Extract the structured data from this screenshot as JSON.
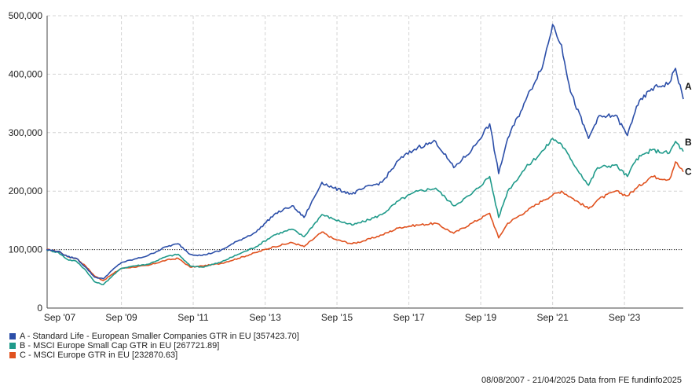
{
  "chart_data": {
    "type": "line",
    "y_ticks": [
      "0",
      "100,000",
      "200,000",
      "300,000",
      "400,000",
      "500,000"
    ],
    "ylim": [
      0,
      500000
    ],
    "x_ticks": [
      "Sep '07",
      "Sep '09",
      "Sep '11",
      "Sep '13",
      "Sep '15",
      "Sep '17",
      "Sep '19",
      "Sep '21",
      "Sep '23"
    ],
    "xlim": [
      "2007-08-08",
      "2025-04-21"
    ],
    "baseline": 100000,
    "grid": true,
    "series": [
      {
        "key": "A",
        "name": "A - Standard Life - European Smaller Companies GTR in EU [357423.70]",
        "color": "#2b4ea8",
        "points": [
          [
            "2007-08",
            100000
          ],
          [
            "2007-12",
            97000
          ],
          [
            "2008-03",
            88000
          ],
          [
            "2008-06",
            85000
          ],
          [
            "2008-09",
            70000
          ],
          [
            "2008-12",
            53000
          ],
          [
            "2009-03",
            50000
          ],
          [
            "2009-06",
            65000
          ],
          [
            "2009-09",
            78000
          ],
          [
            "2010-01",
            83000
          ],
          [
            "2010-06",
            90000
          ],
          [
            "2010-12",
            105000
          ],
          [
            "2011-04",
            110000
          ],
          [
            "2011-08",
            92000
          ],
          [
            "2011-12",
            90000
          ],
          [
            "2012-06",
            98000
          ],
          [
            "2012-12",
            115000
          ],
          [
            "2013-06",
            130000
          ],
          [
            "2013-12",
            160000
          ],
          [
            "2014-06",
            175000
          ],
          [
            "2014-10",
            155000
          ],
          [
            "2015-04",
            215000
          ],
          [
            "2015-08",
            205000
          ],
          [
            "2016-02",
            195000
          ],
          [
            "2016-06",
            205000
          ],
          [
            "2016-12",
            215000
          ],
          [
            "2017-06",
            255000
          ],
          [
            "2017-12",
            275000
          ],
          [
            "2018-06",
            285000
          ],
          [
            "2018-12",
            240000
          ],
          [
            "2019-06",
            270000
          ],
          [
            "2019-12",
            315000
          ],
          [
            "2020-03",
            230000
          ],
          [
            "2020-06",
            290000
          ],
          [
            "2020-12",
            355000
          ],
          [
            "2021-06",
            420000
          ],
          [
            "2021-09",
            485000
          ],
          [
            "2021-12",
            450000
          ],
          [
            "2022-03",
            370000
          ],
          [
            "2022-09",
            290000
          ],
          [
            "2022-12",
            325000
          ],
          [
            "2023-06",
            330000
          ],
          [
            "2023-10",
            295000
          ],
          [
            "2024-01",
            345000
          ],
          [
            "2024-06",
            375000
          ],
          [
            "2024-12",
            385000
          ],
          [
            "2025-02",
            410000
          ],
          [
            "2025-04-21",
            357424
          ]
        ]
      },
      {
        "key": "B",
        "name": "B - MSCI Europe Small Cap GTR in EU [267721.89]",
        "color": "#1f9a8a",
        "points": [
          [
            "2007-08",
            100000
          ],
          [
            "2007-12",
            95000
          ],
          [
            "2008-03",
            83000
          ],
          [
            "2008-06",
            80000
          ],
          [
            "2008-09",
            65000
          ],
          [
            "2008-12",
            45000
          ],
          [
            "2009-03",
            40000
          ],
          [
            "2009-06",
            55000
          ],
          [
            "2009-09",
            68000
          ],
          [
            "2010-01",
            72000
          ],
          [
            "2010-06",
            75000
          ],
          [
            "2010-12",
            88000
          ],
          [
            "2011-04",
            92000
          ],
          [
            "2011-08",
            72000
          ],
          [
            "2011-12",
            70000
          ],
          [
            "2012-06",
            78000
          ],
          [
            "2012-12",
            92000
          ],
          [
            "2013-06",
            105000
          ],
          [
            "2013-12",
            125000
          ],
          [
            "2014-06",
            135000
          ],
          [
            "2014-10",
            122000
          ],
          [
            "2015-04",
            160000
          ],
          [
            "2015-08",
            152000
          ],
          [
            "2016-02",
            142000
          ],
          [
            "2016-06",
            148000
          ],
          [
            "2016-12",
            160000
          ],
          [
            "2017-06",
            185000
          ],
          [
            "2017-12",
            200000
          ],
          [
            "2018-06",
            205000
          ],
          [
            "2018-12",
            175000
          ],
          [
            "2019-06",
            195000
          ],
          [
            "2019-12",
            225000
          ],
          [
            "2020-03",
            155000
          ],
          [
            "2020-06",
            200000
          ],
          [
            "2020-12",
            240000
          ],
          [
            "2021-06",
            270000
          ],
          [
            "2021-09",
            290000
          ],
          [
            "2021-12",
            280000
          ],
          [
            "2022-03",
            255000
          ],
          [
            "2022-09",
            210000
          ],
          [
            "2022-12",
            240000
          ],
          [
            "2023-06",
            245000
          ],
          [
            "2023-10",
            225000
          ],
          [
            "2024-01",
            255000
          ],
          [
            "2024-06",
            270000
          ],
          [
            "2024-12",
            265000
          ],
          [
            "2025-02",
            285000
          ],
          [
            "2025-04-21",
            267722
          ]
        ]
      },
      {
        "key": "C",
        "name": "C - MSCI Europe GTR in EU [232870.63]",
        "color": "#e0521f",
        "points": [
          [
            "2007-08",
            100000
          ],
          [
            "2007-12",
            97000
          ],
          [
            "2008-03",
            88000
          ],
          [
            "2008-06",
            85000
          ],
          [
            "2008-09",
            72000
          ],
          [
            "2008-12",
            55000
          ],
          [
            "2009-03",
            47000
          ],
          [
            "2009-06",
            58000
          ],
          [
            "2009-09",
            68000
          ],
          [
            "2010-01",
            70000
          ],
          [
            "2010-06",
            73000
          ],
          [
            "2010-12",
            82000
          ],
          [
            "2011-04",
            85000
          ],
          [
            "2011-08",
            70000
          ],
          [
            "2011-12",
            72000
          ],
          [
            "2012-06",
            76000
          ],
          [
            "2012-12",
            85000
          ],
          [
            "2013-06",
            95000
          ],
          [
            "2013-12",
            105000
          ],
          [
            "2014-06",
            112000
          ],
          [
            "2014-10",
            105000
          ],
          [
            "2015-04",
            130000
          ],
          [
            "2015-08",
            118000
          ],
          [
            "2016-02",
            110000
          ],
          [
            "2016-06",
            115000
          ],
          [
            "2016-12",
            125000
          ],
          [
            "2017-06",
            138000
          ],
          [
            "2017-12",
            142000
          ],
          [
            "2018-06",
            145000
          ],
          [
            "2018-12",
            128000
          ],
          [
            "2019-06",
            145000
          ],
          [
            "2019-12",
            162000
          ],
          [
            "2020-03",
            120000
          ],
          [
            "2020-06",
            145000
          ],
          [
            "2020-12",
            165000
          ],
          [
            "2021-06",
            185000
          ],
          [
            "2021-09",
            193000
          ],
          [
            "2021-12",
            200000
          ],
          [
            "2022-03",
            190000
          ],
          [
            "2022-09",
            170000
          ],
          [
            "2022-12",
            185000
          ],
          [
            "2023-06",
            200000
          ],
          [
            "2023-10",
            192000
          ],
          [
            "2024-01",
            205000
          ],
          [
            "2024-06",
            225000
          ],
          [
            "2024-12",
            220000
          ],
          [
            "2025-02",
            250000
          ],
          [
            "2025-04-21",
            232871
          ]
        ]
      }
    ]
  },
  "footer": {
    "text": "08/08/2007 - 21/04/2025 Data from FE fundinfo2025"
  }
}
